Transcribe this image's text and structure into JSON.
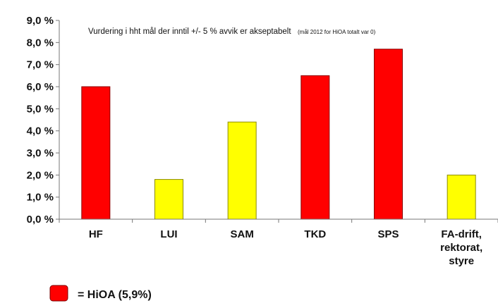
{
  "chart_data": {
    "type": "bar",
    "categories": [
      "HF",
      "LUI",
      "SAM",
      "TKD",
      "SPS",
      "FA-drift, rektorat, styre"
    ],
    "category_lines": [
      [
        "HF"
      ],
      [
        "LUI"
      ],
      [
        "SAM"
      ],
      [
        "TKD"
      ],
      [
        "SPS"
      ],
      [
        "FA-drift,",
        "rektorat,",
        "styre"
      ]
    ],
    "values": [
      6.0,
      1.8,
      4.4,
      6.5,
      7.7,
      2.0
    ],
    "bar_colors": [
      "#ff0000",
      "#ffff00",
      "#ffff00",
      "#ff0000",
      "#ff0000",
      "#ffff00"
    ],
    "ylim": [
      0,
      9
    ],
    "yticks": [
      0,
      1,
      2,
      3,
      4,
      5,
      6,
      7,
      8,
      9
    ],
    "ytick_labels": [
      "0,0 %",
      "1,0 %",
      "2,0 %",
      "3,0 %",
      "4,0 %",
      "5,0 %",
      "6,0 %",
      "7,0 %",
      "8,0 %",
      "9,0 %"
    ],
    "annotation_main": "Vurdering i hht mål der  inntil +/- 5 %  avvik er akseptabelt",
    "annotation_small": "(mål 2012 for HiOA totalt var 0)",
    "legend": {
      "label": "= HiOA (5,9%)",
      "color": "#ff0000"
    },
    "grid": false
  }
}
